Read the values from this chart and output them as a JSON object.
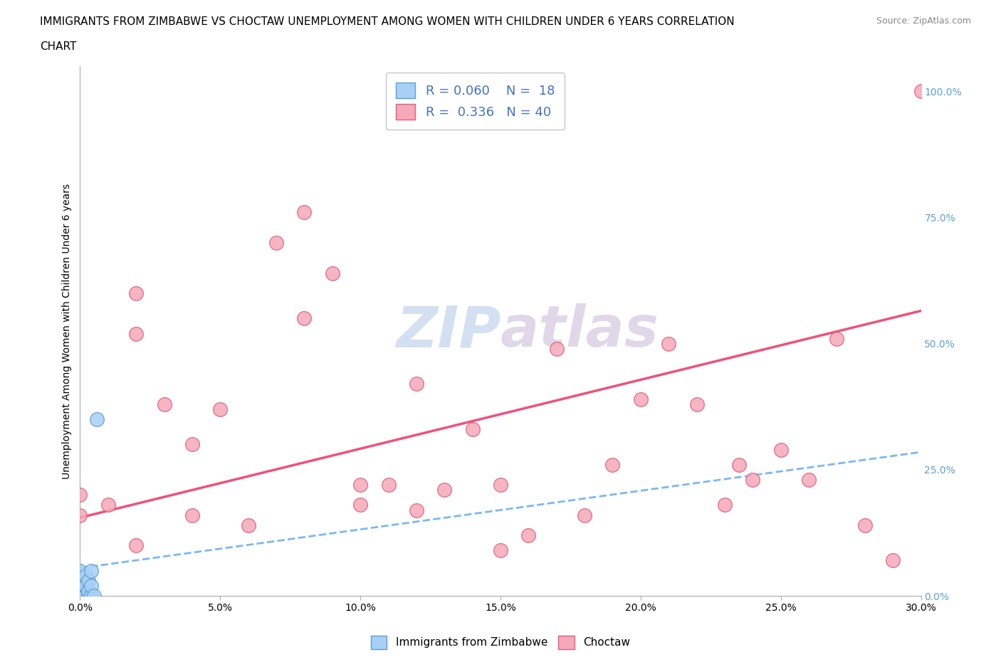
{
  "title_line1": "IMMIGRANTS FROM ZIMBABWE VS CHOCTAW UNEMPLOYMENT AMONG WOMEN WITH CHILDREN UNDER 6 YEARS CORRELATION",
  "title_line2": "CHART",
  "source": "Source: ZipAtlas.com",
  "ylabel": "Unemployment Among Women with Children Under 6 years",
  "xlim": [
    0.0,
    0.3
  ],
  "ylim": [
    0.0,
    1.05
  ],
  "xtick_labels": [
    "0.0%",
    "5.0%",
    "10.0%",
    "15.0%",
    "20.0%",
    "25.0%",
    "30.0%"
  ],
  "xtick_vals": [
    0.0,
    0.05,
    0.1,
    0.15,
    0.2,
    0.25,
    0.3
  ],
  "ytick_labels_right": [
    "100.0%",
    "75.0%",
    "50.0%",
    "25.0%",
    "0.0%"
  ],
  "ytick_vals_right": [
    1.0,
    0.75,
    0.5,
    0.25,
    0.0
  ],
  "zimbabwe_color": "#a8d0f5",
  "zimbabwe_edge": "#5b9fd4",
  "choctaw_color": "#f5a8b8",
  "choctaw_edge": "#e06080",
  "trend_zimbabwe_color": "#7ab8f5",
  "trend_choctaw_color": "#f0507a",
  "watermark": "ZIPatlas",
  "zimbabwe_x": [
    0.0,
    0.0,
    0.0,
    0.0,
    0.0,
    0.001,
    0.001,
    0.002,
    0.002,
    0.002,
    0.003,
    0.003,
    0.003,
    0.004,
    0.004,
    0.004,
    0.005,
    0.006
  ],
  "zimbabwe_y": [
    0.0,
    0.01,
    0.02,
    0.03,
    0.05,
    0.0,
    0.02,
    0.0,
    0.02,
    0.04,
    0.0,
    0.01,
    0.03,
    0.0,
    0.02,
    0.05,
    0.0,
    0.35
  ],
  "choctaw_x": [
    0.0,
    0.0,
    0.01,
    0.02,
    0.02,
    0.02,
    0.03,
    0.04,
    0.04,
    0.05,
    0.06,
    0.07,
    0.08,
    0.08,
    0.09,
    0.1,
    0.1,
    0.11,
    0.12,
    0.12,
    0.13,
    0.14,
    0.15,
    0.15,
    0.16,
    0.17,
    0.18,
    0.19,
    0.2,
    0.21,
    0.22,
    0.23,
    0.235,
    0.24,
    0.25,
    0.26,
    0.27,
    0.28,
    0.29,
    0.3
  ],
  "choctaw_y": [
    0.16,
    0.2,
    0.18,
    0.6,
    0.52,
    0.1,
    0.38,
    0.16,
    0.3,
    0.37,
    0.14,
    0.7,
    0.76,
    0.55,
    0.64,
    0.18,
    0.22,
    0.22,
    0.42,
    0.17,
    0.21,
    0.33,
    0.22,
    0.09,
    0.12,
    0.49,
    0.16,
    0.26,
    0.39,
    0.5,
    0.38,
    0.18,
    0.26,
    0.23,
    0.29,
    0.23,
    0.51,
    0.14,
    0.07,
    1.0
  ],
  "choctaw_trend_x0": 0.0,
  "choctaw_trend_y0": 0.155,
  "choctaw_trend_x1": 0.3,
  "choctaw_trend_y1": 0.565,
  "zimbabwe_trend_x0": 0.0,
  "zimbabwe_trend_y0": 0.055,
  "zimbabwe_trend_x1": 0.3,
  "zimbabwe_trend_y1": 0.285
}
